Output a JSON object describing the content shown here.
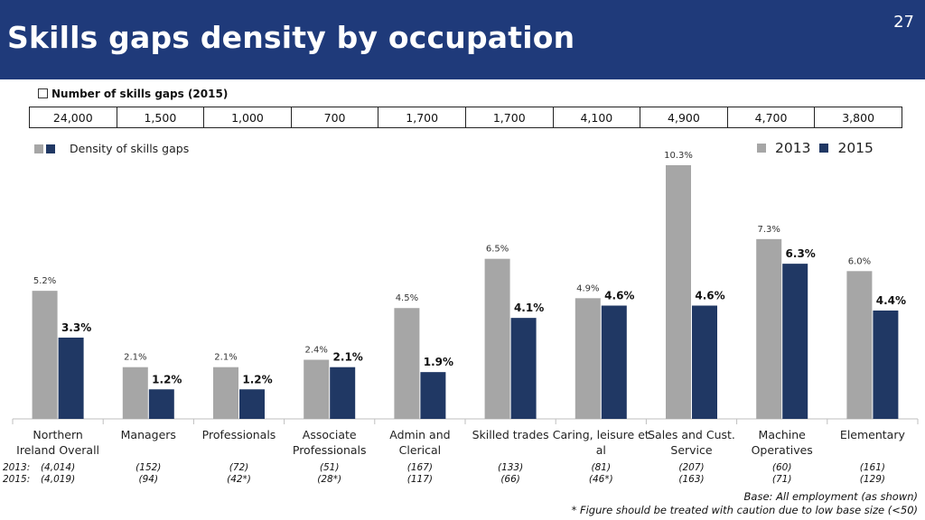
{
  "header": {
    "title": "Skills gaps density by occupation",
    "page_number": "27"
  },
  "gaps": {
    "label": "Number of skills gaps (2015)",
    "values": [
      "24,000",
      "1,500",
      "1,000",
      "700",
      "1,700",
      "1,700",
      "4,100",
      "4,900",
      "4,700",
      "3,800"
    ]
  },
  "legend": {
    "density_label": "Density of skills gaps",
    "year1": "2013",
    "year2": "2015"
  },
  "colors": {
    "header": "#1f3a7a",
    "series2013": "#a6a6a6",
    "series2015": "#203864"
  },
  "chart_data": {
    "type": "bar",
    "title": "",
    "categories": [
      "Northern\nIreland Overall",
      "Managers",
      "Professionals",
      "Associate\nProfessionals",
      "Admin and\nClerical",
      "Skilled trades",
      "Caring, leisure et\nal",
      "Sales and Cust.\nService",
      "Machine\nOperatives",
      "Elementary"
    ],
    "series": [
      {
        "name": "2013",
        "values": [
          5.2,
          2.1,
          2.1,
          2.4,
          4.5,
          6.5,
          4.9,
          10.3,
          7.3,
          6.0
        ],
        "labels": [
          "5.2%",
          "2.1%",
          "2.1%",
          "2.4%",
          "4.5%",
          "6.5%",
          "4.9%",
          "10.3%",
          "7.3%",
          "6.0%"
        ]
      },
      {
        "name": "2015",
        "values": [
          3.3,
          1.2,
          1.2,
          2.1,
          1.9,
          4.1,
          4.6,
          4.6,
          6.3,
          4.4
        ],
        "labels": [
          "3.3%",
          "1.2%",
          "1.2%",
          "2.1%",
          "1.9%",
          "4.1%",
          "4.6%",
          "4.6%",
          "6.3%",
          "4.4%"
        ]
      }
    ],
    "ylim": [
      0,
      10.3
    ],
    "grid": false,
    "legend_position": "top-right"
  },
  "base_sizes": {
    "row_labels": [
      "2013:",
      "2015:"
    ],
    "values_2013": [
      "(4,014)",
      "(152)",
      "(72)",
      "(51)",
      "(167)",
      "(133)",
      "(81)",
      "(207)",
      "(60)",
      "(161)"
    ],
    "values_2015": [
      "(4,019)",
      "(94)",
      "(42*)",
      "(28*)",
      "(117)",
      "(66)",
      "(46*)",
      "(163)",
      "(71)",
      "(129)"
    ]
  },
  "footnotes": {
    "base": "Base: All employment  (as shown)",
    "caution": "* Figure should be treated with caution due to low base size (<50)"
  }
}
